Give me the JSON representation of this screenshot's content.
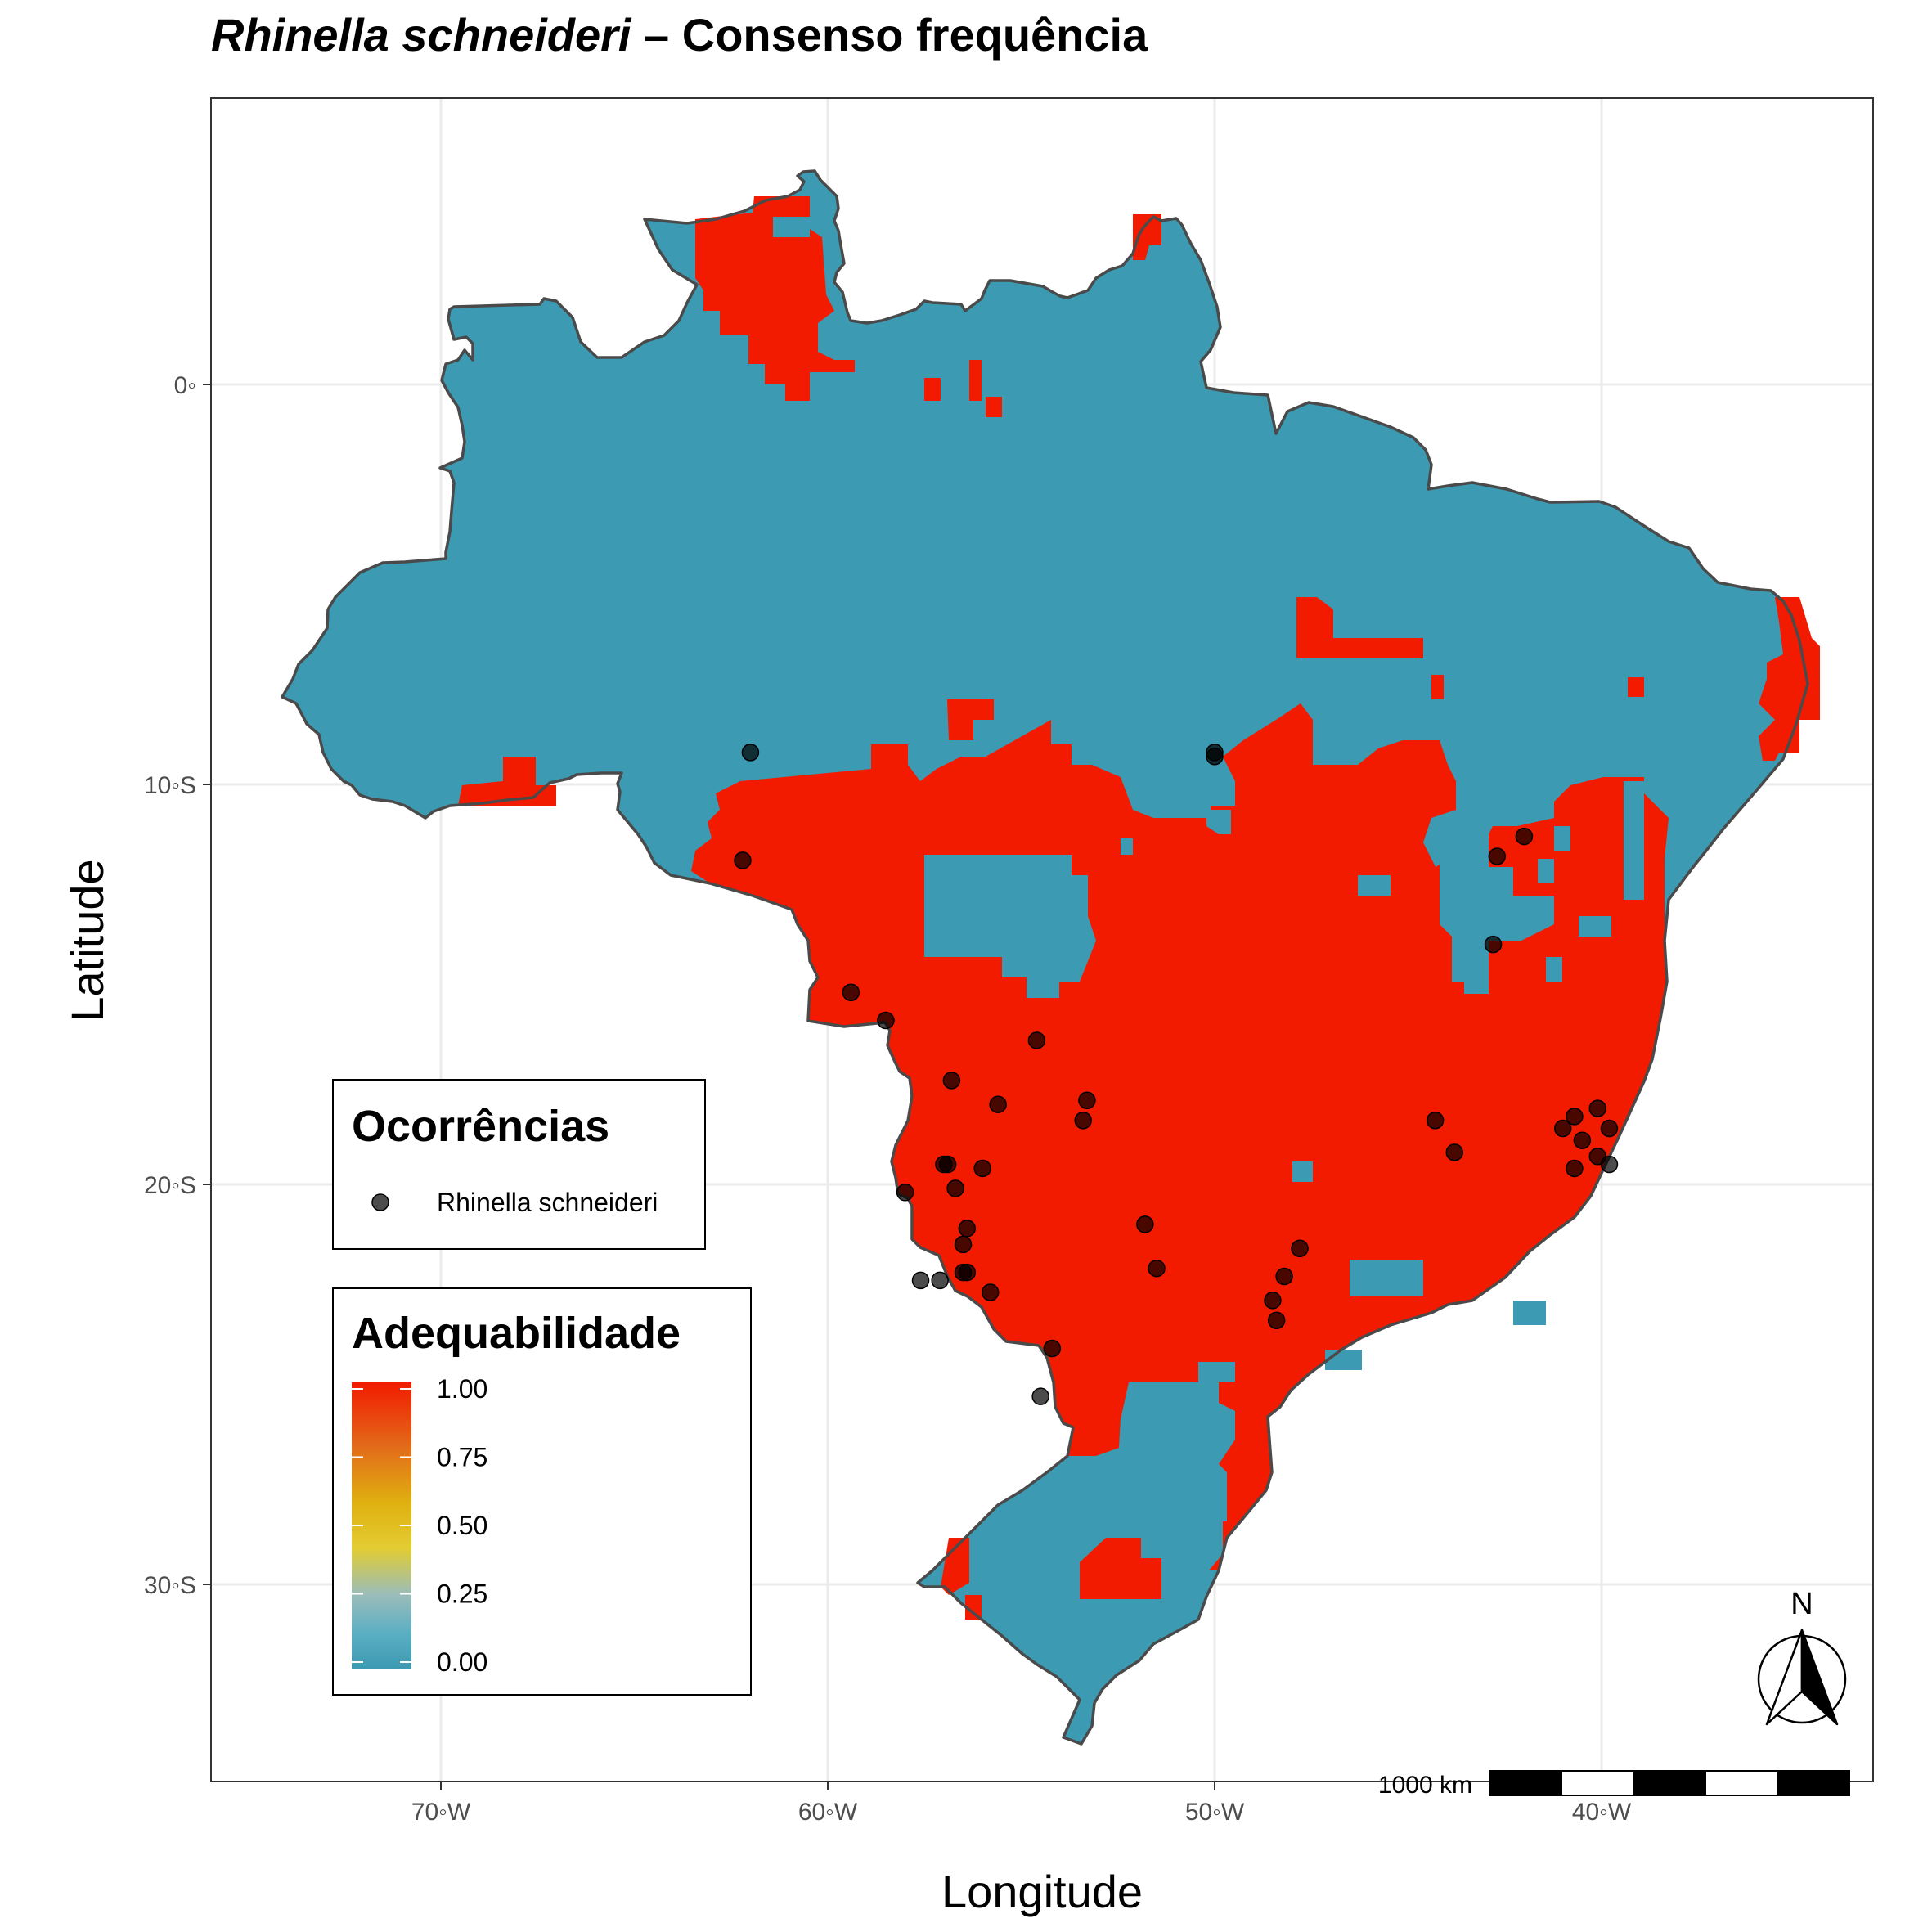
{
  "title": {
    "species": "Rhinella schneideri",
    "rest": " – Consenso frequência"
  },
  "axes": {
    "xlabel": "Longitude",
    "ylabel": "Latitude",
    "xticks": [
      "70◦W",
      "60◦W",
      "50◦W",
      "40◦W"
    ],
    "yticks": [
      "0◦",
      "10◦S",
      "20◦S",
      "30◦S"
    ],
    "xtick_values": [
      -70,
      -60,
      -50,
      -40
    ],
    "ytick_values": [
      0,
      -10,
      -20,
      -30
    ],
    "xlim": [
      -75.9,
      -33.0
    ],
    "ylim": [
      -34.8,
      7.2
    ],
    "grid": true
  },
  "legend_points": {
    "title": "Ocorrências",
    "label": "Rhinella schneideri",
    "color": "#000000"
  },
  "legend_colorbar": {
    "title": "Adequabilidade",
    "ticks": [
      "1.00",
      "0.75",
      "0.50",
      "0.25",
      "0.00"
    ],
    "colors": {
      "high": "#f21b00",
      "mid_high": "#e0a800",
      "mid": "#e9c92c",
      "low": "#7ab9c9",
      "zero": "#3c9ab2"
    }
  },
  "scalebar": {
    "label": "1000 km"
  },
  "north_arrow": {
    "label": "N"
  },
  "colors": {
    "suitable": "#f21b00",
    "unsuitable": "#3c9ab2",
    "border": "#4a4a4a",
    "grid": "#ebebeb"
  },
  "occurrences": [
    [
      -62.0,
      -9.2
    ],
    [
      -62.2,
      -11.9
    ],
    [
      -59.4,
      -15.2
    ],
    [
      -58.5,
      -15.9
    ],
    [
      -56.8,
      -17.4
    ],
    [
      -55.6,
      -18.0
    ],
    [
      -54.6,
      -16.4
    ],
    [
      -53.3,
      -17.9
    ],
    [
      -53.4,
      -18.4
    ],
    [
      -57.0,
      -19.5
    ],
    [
      -56.9,
      -19.5
    ],
    [
      -56.0,
      -19.6
    ],
    [
      -56.7,
      -20.1
    ],
    [
      -58.0,
      -20.2
    ],
    [
      -56.4,
      -21.1
    ],
    [
      -56.5,
      -21.5
    ],
    [
      -56.5,
      -22.2
    ],
    [
      -56.4,
      -22.2
    ],
    [
      -57.6,
      -22.4
    ],
    [
      -57.1,
      -22.4
    ],
    [
      -55.8,
      -22.7
    ],
    [
      -54.2,
      -24.1
    ],
    [
      -54.5,
      -25.3
    ],
    [
      -51.8,
      -21.0
    ],
    [
      -51.5,
      -22.1
    ],
    [
      -47.8,
      -21.6
    ],
    [
      -48.2,
      -22.3
    ],
    [
      -48.5,
      -22.9
    ],
    [
      -48.4,
      -23.4
    ],
    [
      -50.0,
      -9.2
    ],
    [
      -50.0,
      -9.3
    ],
    [
      -44.3,
      -18.4
    ],
    [
      -43.8,
      -19.2
    ],
    [
      -42.7,
      -11.8
    ],
    [
      -42.0,
      -11.3
    ],
    [
      -42.8,
      -14.0
    ],
    [
      -41.0,
      -18.6
    ],
    [
      -40.7,
      -18.3
    ],
    [
      -40.5,
      -18.9
    ],
    [
      -40.1,
      -18.1
    ],
    [
      -40.7,
      -19.6
    ],
    [
      -40.1,
      -19.3
    ],
    [
      -39.8,
      -18.6
    ],
    [
      -39.8,
      -19.5
    ]
  ]
}
